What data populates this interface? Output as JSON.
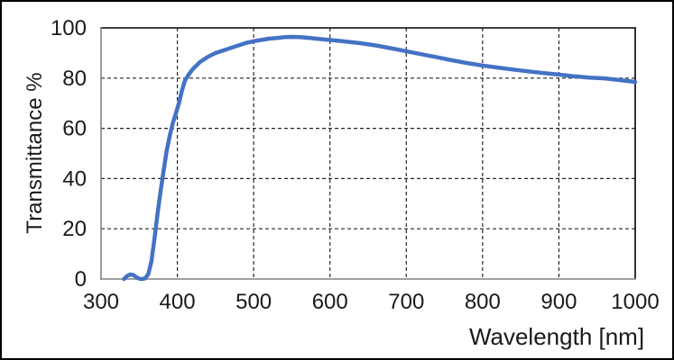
{
  "chart_data": {
    "type": "line",
    "title": "",
    "xlabel": "Wavelength [nm]",
    "ylabel": "Transmittance %",
    "xlim": [
      300,
      1000
    ],
    "ylim": [
      0,
      100
    ],
    "x_ticks": [
      300,
      400,
      500,
      600,
      700,
      800,
      900,
      1000
    ],
    "y_ticks": [
      0,
      20,
      40,
      60,
      80,
      100
    ],
    "grid": "dashed interior gridlines, black",
    "legend": "none",
    "series": [
      {
        "name": "Transmittance",
        "color": "#4472C4",
        "x": [
          330,
          334,
          338,
          342,
          346,
          350,
          354,
          358,
          362,
          366,
          370,
          374,
          378,
          382,
          386,
          390,
          394,
          398,
          402,
          406,
          410,
          415,
          420,
          430,
          440,
          450,
          460,
          470,
          480,
          490,
          500,
          510,
          520,
          530,
          540,
          550,
          560,
          570,
          580,
          590,
          600,
          620,
          640,
          660,
          680,
          700,
          720,
          740,
          760,
          780,
          800,
          820,
          840,
          860,
          880,
          900,
          920,
          940,
          960,
          980,
          1000
        ],
        "y": [
          0,
          1.2,
          1.8,
          1.6,
          0.8,
          0.1,
          0,
          0.3,
          2,
          7,
          16,
          26,
          35,
          43,
          51,
          57,
          62,
          66,
          70,
          75,
          79,
          81.5,
          83.5,
          86.5,
          88.5,
          90,
          91,
          92,
          93,
          94,
          94.7,
          95.2,
          95.7,
          96,
          96.3,
          96.4,
          96.3,
          96.1,
          95.8,
          95.5,
          95.2,
          94.6,
          93.9,
          93,
          91.9,
          90.7,
          89.5,
          88.3,
          87.1,
          86,
          85,
          84.2,
          83.4,
          82.7,
          82,
          81.4,
          80.7,
          80.2,
          79.9,
          79.2,
          78.5
        ]
      }
    ]
  },
  "colors": {
    "curve": "#4472C4",
    "gridline": "#262626",
    "plot_border": "#000000",
    "axis_line": "#808080",
    "frame_border": "#000000",
    "background": "#ffffff",
    "text": "#1a1a1a"
  }
}
